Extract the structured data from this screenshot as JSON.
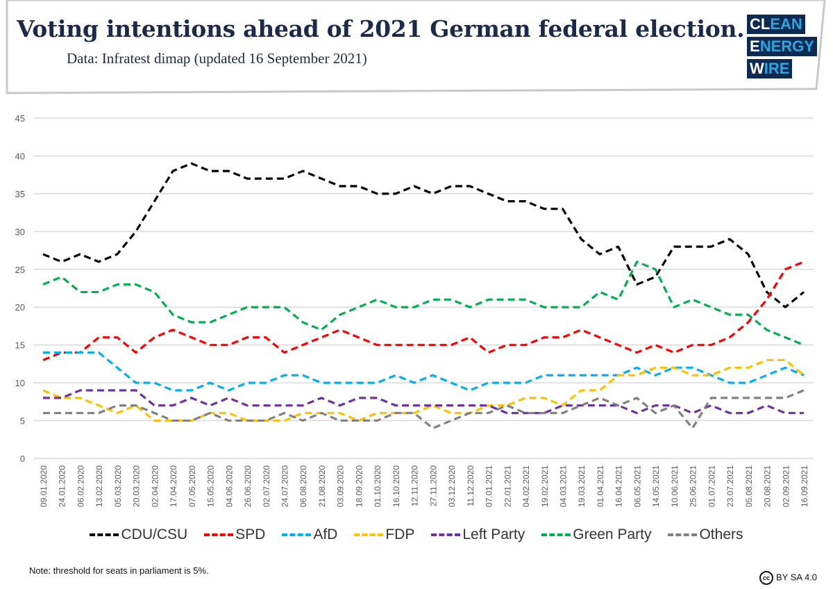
{
  "header": {
    "title": "Voting intentions ahead of 2021 German federal election.",
    "subtitle": "Data: Infratest dimap (updated 16 September 2021)"
  },
  "logo": {
    "lines": [
      [
        "CL",
        "EAN"
      ],
      [
        "E",
        "NERGY"
      ],
      [
        "W",
        "IRE"
      ]
    ],
    "text": "CLEAN ENERGY WIRE"
  },
  "footer": {
    "note": "Note: threshold for seats in parliament is 5%.",
    "license": "BY SA 4.0",
    "license_icon": "cc-icon"
  },
  "chart_data": {
    "type": "line",
    "title": "Voting intentions ahead of 2021 German federal election.",
    "xlabel": "",
    "ylabel": "",
    "ylim": [
      0,
      45
    ],
    "yticks": [
      0,
      5,
      10,
      15,
      20,
      25,
      30,
      35,
      40,
      45
    ],
    "grid": "horizontal",
    "legend": "bottom",
    "line_style": "dashed",
    "categories": [
      "09.01.2020",
      "24.01.2020",
      "06.02.2020",
      "13.02.2020",
      "05.03.2020",
      "20.03.2020",
      "02.04.2020",
      "17.04.2020",
      "07.05.2020",
      "15.05.2020",
      "04.06.2020",
      "26.06.2020",
      "02.07.2020",
      "24.07.2020",
      "06.08.2020",
      "21.08.2020",
      "03.09.2020",
      "18.09.2020",
      "01.10.2020",
      "16.10.2020",
      "12.11.2020",
      "27.11.2020",
      "03.12.2020",
      "11.12.2020",
      "07.01.2021",
      "22.01.2021",
      "04.02.2021",
      "19.02.2021",
      "04.03.2021",
      "19.03.2021",
      "01.04.2021",
      "16.04.2021",
      "06.05.2021",
      "14.05.2021",
      "10.06.2021",
      "25.06.2021",
      "01.07.2021",
      "23.07.2021",
      "05.08.2021",
      "20.08.2021",
      "02.09.2021",
      "16.09.2021"
    ],
    "series": [
      {
        "name": "CDU/CSU",
        "color": "#000000",
        "values": [
          27,
          26,
          27,
          26,
          27,
          30,
          34,
          38,
          39,
          38,
          38,
          37,
          37,
          37,
          38,
          37,
          36,
          36,
          35,
          35,
          36,
          35,
          36,
          36,
          35,
          34,
          34,
          33,
          33,
          29,
          27,
          28,
          23,
          24,
          28,
          28,
          28,
          29,
          27,
          22,
          20,
          22
        ]
      },
      {
        "name": "SPD",
        "color": "#ff0000",
        "values": [
          13,
          14,
          14,
          16,
          16,
          14,
          16,
          17,
          16,
          15,
          15,
          16,
          16,
          14,
          15,
          16,
          17,
          16,
          15,
          15,
          15,
          15,
          15,
          16,
          14,
          15,
          15,
          16,
          16,
          17,
          16,
          15,
          14,
          15,
          14,
          15,
          15,
          16,
          18,
          21,
          25,
          26
        ]
      },
      {
        "name": "AfD",
        "color": "#00b0f0",
        "values": [
          14,
          14,
          14,
          14,
          12,
          10,
          10,
          9,
          9,
          10,
          9,
          10,
          10,
          11,
          11,
          10,
          10,
          10,
          10,
          11,
          10,
          11,
          10,
          9,
          10,
          10,
          10,
          11,
          11,
          11,
          11,
          11,
          12,
          11,
          12,
          12,
          11,
          10,
          10,
          11,
          12,
          11
        ]
      },
      {
        "name": "FDP",
        "color": "#ffc000",
        "values": [
          9,
          8,
          8,
          7,
          6,
          7,
          5,
          5,
          5,
          6,
          6,
          5,
          5,
          5,
          6,
          6,
          6,
          5,
          6,
          6,
          6,
          7,
          6,
          6,
          7,
          7,
          8,
          8,
          7,
          9,
          9,
          11,
          11,
          12,
          12,
          11,
          11,
          12,
          12,
          13,
          13,
          11
        ]
      },
      {
        "name": "Left Party",
        "color": "#7030a0",
        "values": [
          8,
          8,
          9,
          9,
          9,
          9,
          7,
          7,
          8,
          7,
          8,
          7,
          7,
          7,
          7,
          8,
          7,
          8,
          8,
          7,
          7,
          7,
          7,
          7,
          7,
          6,
          6,
          6,
          7,
          7,
          7,
          7,
          6,
          7,
          7,
          6,
          7,
          6,
          6,
          7,
          6,
          6
        ]
      },
      {
        "name": "Green Party",
        "color": "#00b050",
        "values": [
          23,
          24,
          22,
          22,
          23,
          23,
          22,
          19,
          18,
          18,
          19,
          20,
          20,
          20,
          18,
          17,
          19,
          20,
          21,
          20,
          20,
          21,
          21,
          20,
          21,
          21,
          21,
          20,
          20,
          20,
          22,
          21,
          26,
          25,
          20,
          21,
          20,
          19,
          19,
          17,
          16,
          15
        ]
      },
      {
        "name": "Others",
        "color": "#808080",
        "values": [
          6,
          6,
          6,
          6,
          7,
          7,
          6,
          5,
          5,
          6,
          5,
          5,
          5,
          6,
          5,
          6,
          5,
          5,
          5,
          6,
          6,
          4,
          5,
          6,
          6,
          7,
          6,
          6,
          6,
          7,
          8,
          7,
          8,
          6,
          7,
          4,
          8,
          8,
          8,
          8,
          8,
          9
        ]
      }
    ]
  }
}
